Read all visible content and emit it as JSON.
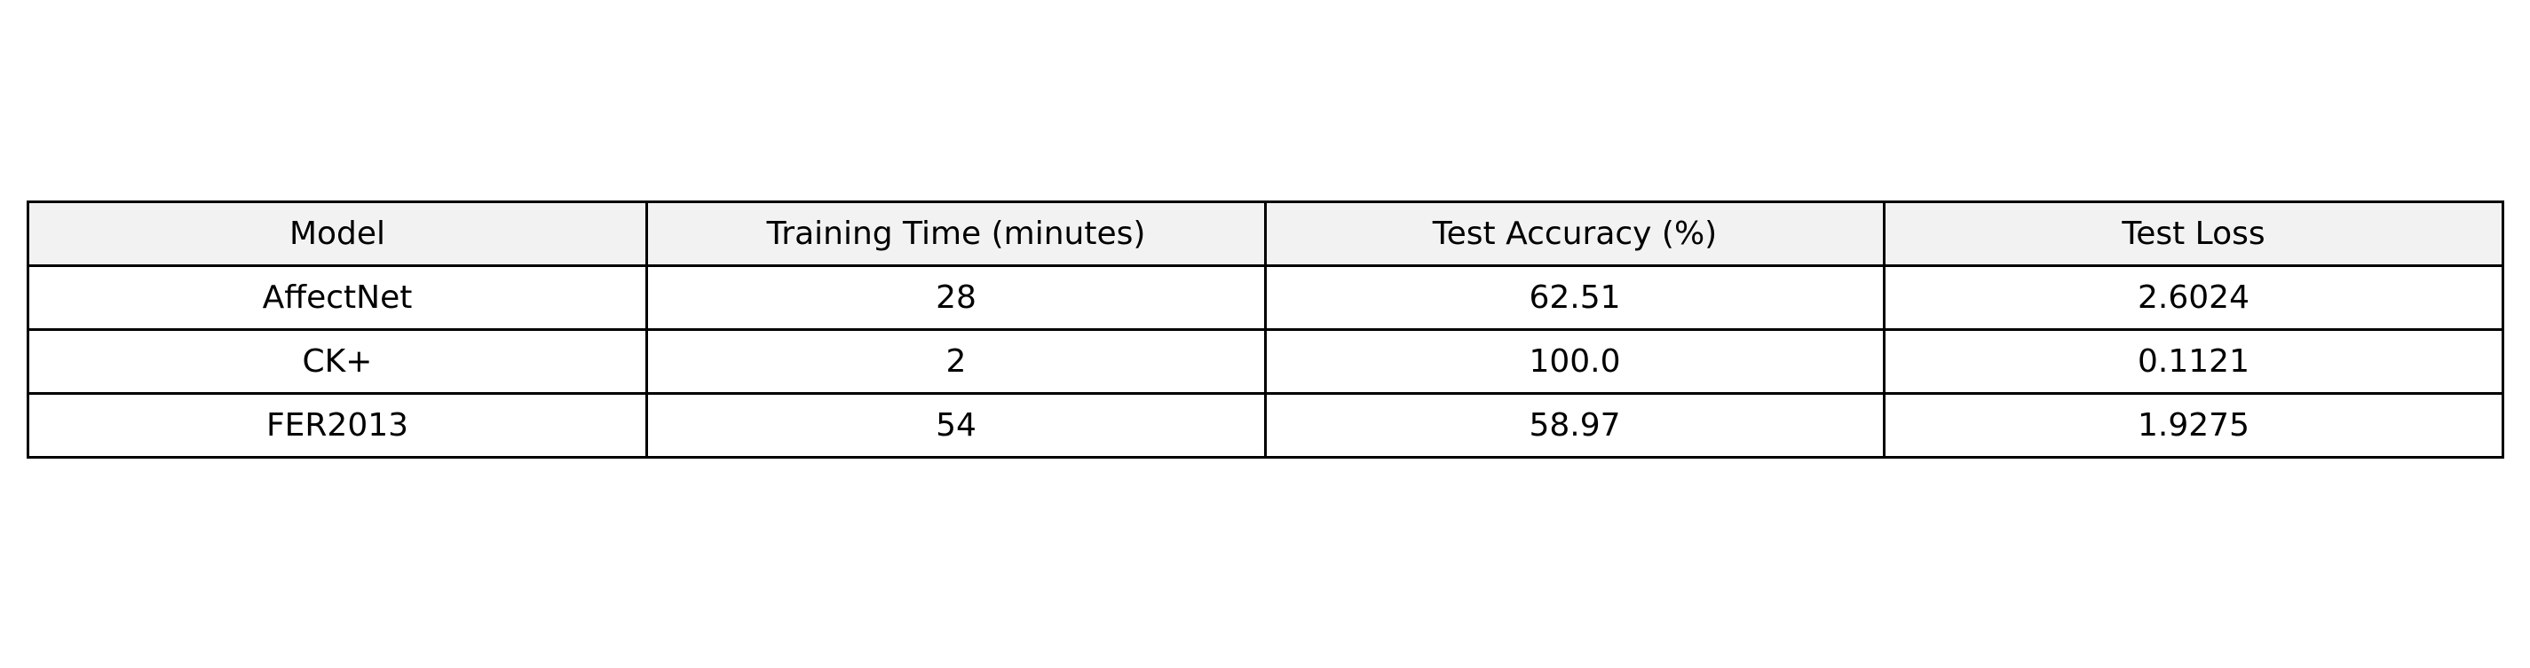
{
  "chart_data": {
    "type": "table",
    "title": "",
    "columns": [
      "Model",
      "Training Time (minutes)",
      "Test Accuracy (%)",
      "Test Loss"
    ],
    "rows": [
      [
        "AffectNet",
        "28",
        "62.51",
        "2.6024"
      ],
      [
        "CK+",
        "2",
        "100.0",
        "0.1121"
      ],
      [
        "FER2013",
        "54",
        "58.97",
        "1.9275"
      ]
    ],
    "header_background": "#f2f2f2",
    "cell_background": "#ffffff",
    "border_color": "#000000"
  }
}
